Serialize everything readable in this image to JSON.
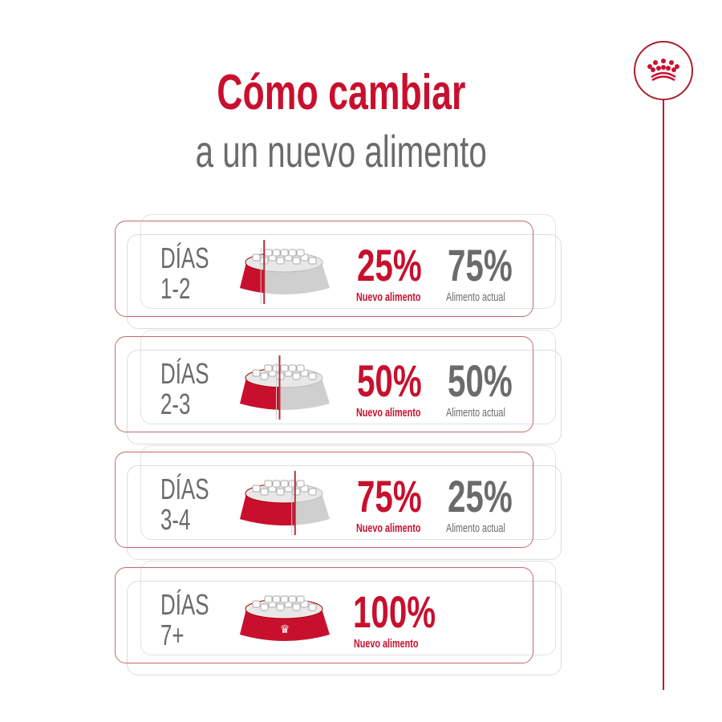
{
  "title": {
    "line1": "Cómo cambiar",
    "line2": "a un nuevo alimento"
  },
  "colors": {
    "brand": "#c8102e",
    "grey": "#6b6b6b"
  },
  "logo": {
    "icon": "crown-icon"
  },
  "steps": [
    {
      "days_label": "DÍAS",
      "days": "1-2",
      "new_pct": "25%",
      "new_label": "Nuevo alimento",
      "current_pct": "75%",
      "current_label": "Alimento actual",
      "new_fraction": 0.25
    },
    {
      "days_label": "DÍAS",
      "days": "2-3",
      "new_pct": "50%",
      "new_label": "Nuevo alimento",
      "current_pct": "50%",
      "current_label": "Alimento actual",
      "new_fraction": 0.5
    },
    {
      "days_label": "DÍAS",
      "days": "3-4",
      "new_pct": "75%",
      "new_label": "Nuevo alimento",
      "current_pct": "25%",
      "current_label": "Alimento actual",
      "new_fraction": 0.75
    },
    {
      "days_label": "DÍAS",
      "days": "7+",
      "new_pct": "100%",
      "new_label": "Nuevo alimento",
      "new_fraction": 1
    }
  ]
}
